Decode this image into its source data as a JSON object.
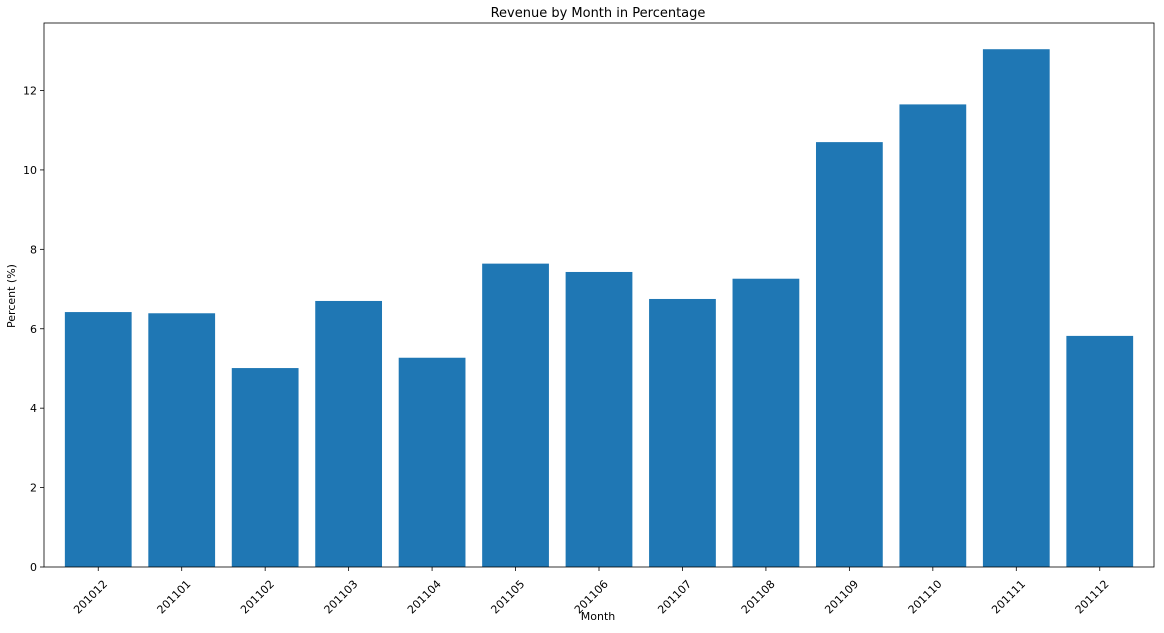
{
  "chart_data": {
    "type": "bar",
    "title": "Revenue by Month in Percentage",
    "xlabel": "Month",
    "ylabel": "Percent (%)",
    "categories": [
      "201012",
      "201101",
      "201102",
      "201103",
      "201104",
      "201105",
      "201106",
      "201107",
      "201108",
      "201109",
      "201110",
      "201111",
      "201112"
    ],
    "values": [
      6.42,
      6.39,
      5.01,
      6.7,
      5.27,
      7.64,
      7.43,
      6.75,
      7.26,
      10.7,
      11.65,
      13.04,
      5.82
    ],
    "ylim": [
      0,
      13.7
    ],
    "yticks": [
      0,
      2,
      4,
      6,
      8,
      10,
      12
    ],
    "grid": false,
    "legend": "none",
    "colors": {
      "bar": "#1f77b4",
      "axis": "#000000",
      "background": "#ffffff"
    }
  }
}
